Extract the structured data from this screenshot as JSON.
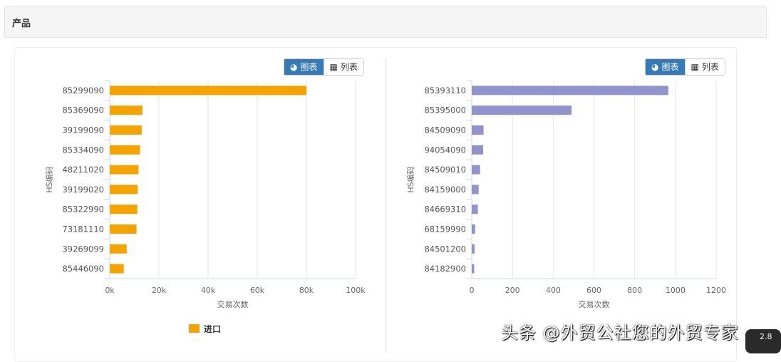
{
  "panel": {
    "title": "产品"
  },
  "toggle": {
    "chart_label": "图表",
    "list_label": "列表"
  },
  "watermark": "头条 @外贸公社您的外贸专家",
  "badge": "2.8",
  "chart_data": [
    {
      "type": "bar",
      "orientation": "horizontal",
      "ylabel": "HS编码",
      "xlabel": "交易次数",
      "xlim": [
        0,
        100000
      ],
      "xticks": [
        "0k",
        "20k",
        "40k",
        "60k",
        "80k",
        "100k"
      ],
      "grid": true,
      "legend": "bottom",
      "color": "#f5a300",
      "categories": [
        "85299090",
        "85369090",
        "39199090",
        "85334090",
        "48211020",
        "39199020",
        "85322990",
        "73181110",
        "39269099",
        "85446090"
      ],
      "series": [
        {
          "name": "进口",
          "values": [
            80000,
            13300,
            13000,
            12300,
            11700,
            11400,
            11200,
            10900,
            6900,
            5700
          ]
        }
      ]
    },
    {
      "type": "bar",
      "orientation": "horizontal",
      "ylabel": "HS编码",
      "xlabel": "交易次数",
      "xlim": [
        0,
        1200
      ],
      "xticks": [
        "0",
        "200",
        "400",
        "600",
        "800",
        "1000",
        "1200"
      ],
      "grid": true,
      "color": "#9194cc",
      "categories": [
        "85393110",
        "85395000",
        "84509090",
        "94054090",
        "84509010",
        "84159000",
        "84669310",
        "68159990",
        "84501200",
        "84182900"
      ],
      "series": [
        {
          "values": [
            965,
            490,
            58,
            56,
            41,
            34,
            30,
            17,
            14,
            12
          ]
        }
      ]
    }
  ]
}
